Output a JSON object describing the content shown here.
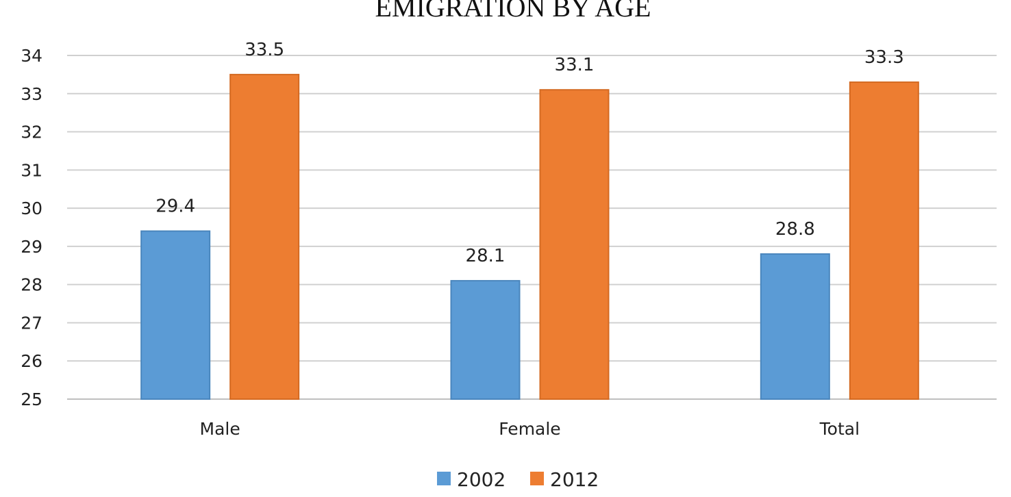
{
  "chart_data": {
    "type": "bar",
    "title": "EMIGRATION BY AGE",
    "categories": [
      "Male",
      "Female",
      "Total"
    ],
    "series": [
      {
        "name": "2002",
        "values": [
          29.4,
          28.1,
          28.8
        ],
        "color": "#5B9BD5"
      },
      {
        "name": "2012",
        "values": [
          33.5,
          33.1,
          33.3
        ],
        "color": "#ED7D31"
      }
    ],
    "xlabel": "",
    "ylabel": "",
    "ylim": [
      25,
      34
    ],
    "yticks": [
      25,
      26,
      27,
      28,
      29,
      30,
      31,
      32,
      33,
      34
    ],
    "grid": true,
    "legend_position": "bottom"
  }
}
